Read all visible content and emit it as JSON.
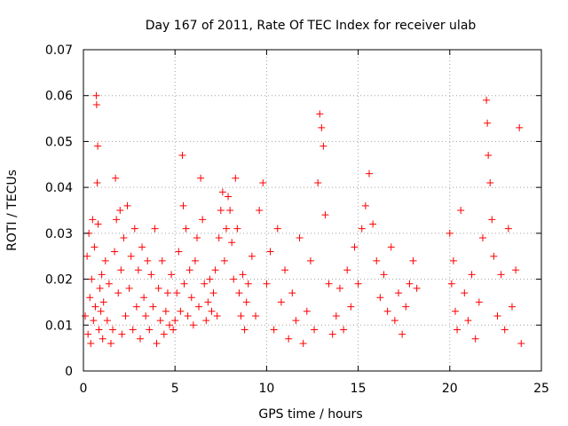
{
  "chart_data": {
    "type": "scatter",
    "title": "Day 167 of 2011, Rate Of TEC Index for receiver ulab",
    "xlabel": "GPS time / hours",
    "ylabel": "ROTI / TECUs",
    "xlim": [
      0,
      25
    ],
    "ylim": [
      0,
      0.07
    ],
    "xticks": [
      "0",
      "5",
      "10",
      "15",
      "20",
      "25"
    ],
    "yticks": [
      "0",
      "0.01",
      "0.02",
      "0.03",
      "0.04",
      "0.05",
      "0.06",
      "0.07"
    ],
    "grid": true,
    "marker": "+",
    "color": "#ff0000",
    "series": [
      {
        "points": [
          [
            0.1,
            0.012
          ],
          [
            0.2,
            0.025
          ],
          [
            0.25,
            0.008
          ],
          [
            0.3,
            0.03
          ],
          [
            0.35,
            0.016
          ],
          [
            0.4,
            0.006
          ],
          [
            0.45,
            0.02
          ],
          [
            0.5,
            0.033
          ],
          [
            0.55,
            0.011
          ],
          [
            0.6,
            0.027
          ],
          [
            0.65,
            0.014
          ],
          [
            0.7,
            0.06
          ],
          [
            0.72,
            0.058
          ],
          [
            0.75,
            0.041
          ],
          [
            0.78,
            0.049
          ],
          [
            0.8,
            0.032
          ],
          [
            0.85,
            0.009
          ],
          [
            0.9,
            0.018
          ],
          [
            0.95,
            0.013
          ],
          [
            1.0,
            0.021
          ],
          [
            1.05,
            0.007
          ],
          [
            1.1,
            0.015
          ],
          [
            1.2,
            0.024
          ],
          [
            1.3,
            0.011
          ],
          [
            1.4,
            0.019
          ],
          [
            1.5,
            0.006
          ],
          [
            1.6,
            0.009
          ],
          [
            1.7,
            0.026
          ],
          [
            1.75,
            0.042
          ],
          [
            1.8,
            0.033
          ],
          [
            1.9,
            0.017
          ],
          [
            2.0,
            0.035
          ],
          [
            2.05,
            0.022
          ],
          [
            2.1,
            0.008
          ],
          [
            2.2,
            0.029
          ],
          [
            2.3,
            0.012
          ],
          [
            2.4,
            0.036
          ],
          [
            2.5,
            0.018
          ],
          [
            2.6,
            0.025
          ],
          [
            2.7,
            0.009
          ],
          [
            2.8,
            0.031
          ],
          [
            2.9,
            0.014
          ],
          [
            3.0,
            0.022
          ],
          [
            3.1,
            0.007
          ],
          [
            3.2,
            0.027
          ],
          [
            3.3,
            0.016
          ],
          [
            3.4,
            0.012
          ],
          [
            3.5,
            0.024
          ],
          [
            3.6,
            0.009
          ],
          [
            3.7,
            0.021
          ],
          [
            3.8,
            0.014
          ],
          [
            3.9,
            0.031
          ],
          [
            4.0,
            0.006
          ],
          [
            4.1,
            0.018
          ],
          [
            4.2,
            0.011
          ],
          [
            4.3,
            0.024
          ],
          [
            4.4,
            0.008
          ],
          [
            4.5,
            0.013
          ],
          [
            4.6,
            0.017
          ],
          [
            4.7,
            0.01
          ],
          [
            4.8,
            0.021
          ],
          [
            4.9,
            0.009
          ],
          [
            5.0,
            0.011
          ],
          [
            5.1,
            0.017
          ],
          [
            5.2,
            0.026
          ],
          [
            5.3,
            0.013
          ],
          [
            5.4,
            0.047
          ],
          [
            5.45,
            0.036
          ],
          [
            5.5,
            0.019
          ],
          [
            5.6,
            0.031
          ],
          [
            5.7,
            0.012
          ],
          [
            5.8,
            0.022
          ],
          [
            5.9,
            0.016
          ],
          [
            6.0,
            0.01
          ],
          [
            6.1,
            0.024
          ],
          [
            6.2,
            0.029
          ],
          [
            6.3,
            0.014
          ],
          [
            6.4,
            0.042
          ],
          [
            6.5,
            0.033
          ],
          [
            6.6,
            0.019
          ],
          [
            6.7,
            0.011
          ],
          [
            6.8,
            0.015
          ],
          [
            6.9,
            0.02
          ],
          [
            7.0,
            0.013
          ],
          [
            7.1,
            0.017
          ],
          [
            7.2,
            0.022
          ],
          [
            7.3,
            0.012
          ],
          [
            7.4,
            0.029
          ],
          [
            7.5,
            0.035
          ],
          [
            7.6,
            0.039
          ],
          [
            7.7,
            0.024
          ],
          [
            7.8,
            0.031
          ],
          [
            7.9,
            0.038
          ],
          [
            8.0,
            0.035
          ],
          [
            8.1,
            0.028
          ],
          [
            8.2,
            0.02
          ],
          [
            8.3,
            0.042
          ],
          [
            8.4,
            0.031
          ],
          [
            8.5,
            0.017
          ],
          [
            8.6,
            0.012
          ],
          [
            8.7,
            0.021
          ],
          [
            8.8,
            0.009
          ],
          [
            8.9,
            0.015
          ],
          [
            9.0,
            0.019
          ],
          [
            9.2,
            0.025
          ],
          [
            9.4,
            0.012
          ],
          [
            9.6,
            0.035
          ],
          [
            9.8,
            0.041
          ],
          [
            10.0,
            0.019
          ],
          [
            10.2,
            0.026
          ],
          [
            10.4,
            0.009
          ],
          [
            10.6,
            0.031
          ],
          [
            10.8,
            0.015
          ],
          [
            11.0,
            0.022
          ],
          [
            11.2,
            0.007
          ],
          [
            11.4,
            0.017
          ],
          [
            11.6,
            0.011
          ],
          [
            11.8,
            0.029
          ],
          [
            12.0,
            0.006
          ],
          [
            12.2,
            0.013
          ],
          [
            12.4,
            0.024
          ],
          [
            12.6,
            0.009
          ],
          [
            12.8,
            0.041
          ],
          [
            12.9,
            0.056
          ],
          [
            13.0,
            0.053
          ],
          [
            13.1,
            0.049
          ],
          [
            13.2,
            0.034
          ],
          [
            13.4,
            0.019
          ],
          [
            13.6,
            0.008
          ],
          [
            13.8,
            0.012
          ],
          [
            14.0,
            0.018
          ],
          [
            14.2,
            0.009
          ],
          [
            14.4,
            0.022
          ],
          [
            14.6,
            0.014
          ],
          [
            14.8,
            0.027
          ],
          [
            15.0,
            0.019
          ],
          [
            15.2,
            0.031
          ],
          [
            15.4,
            0.036
          ],
          [
            15.6,
            0.043
          ],
          [
            15.8,
            0.032
          ],
          [
            16.0,
            0.024
          ],
          [
            16.2,
            0.016
          ],
          [
            16.4,
            0.021
          ],
          [
            16.6,
            0.013
          ],
          [
            16.8,
            0.027
          ],
          [
            17.0,
            0.011
          ],
          [
            17.2,
            0.017
          ],
          [
            17.4,
            0.008
          ],
          [
            17.6,
            0.014
          ],
          [
            17.8,
            0.019
          ],
          [
            18.0,
            0.024
          ],
          [
            18.2,
            0.018
          ],
          [
            20.0,
            0.03
          ],
          [
            20.1,
            0.019
          ],
          [
            20.2,
            0.024
          ],
          [
            20.3,
            0.013
          ],
          [
            20.4,
            0.009
          ],
          [
            20.6,
            0.035
          ],
          [
            20.8,
            0.017
          ],
          [
            21.0,
            0.011
          ],
          [
            21.2,
            0.021
          ],
          [
            21.4,
            0.007
          ],
          [
            21.6,
            0.015
          ],
          [
            21.8,
            0.029
          ],
          [
            22.0,
            0.059
          ],
          [
            22.05,
            0.054
          ],
          [
            22.1,
            0.047
          ],
          [
            22.2,
            0.041
          ],
          [
            22.3,
            0.033
          ],
          [
            22.4,
            0.025
          ],
          [
            22.6,
            0.012
          ],
          [
            22.8,
            0.021
          ],
          [
            23.0,
            0.009
          ],
          [
            23.2,
            0.031
          ],
          [
            23.4,
            0.014
          ],
          [
            23.6,
            0.022
          ],
          [
            23.8,
            0.053
          ],
          [
            23.9,
            0.006
          ]
        ]
      }
    ]
  }
}
